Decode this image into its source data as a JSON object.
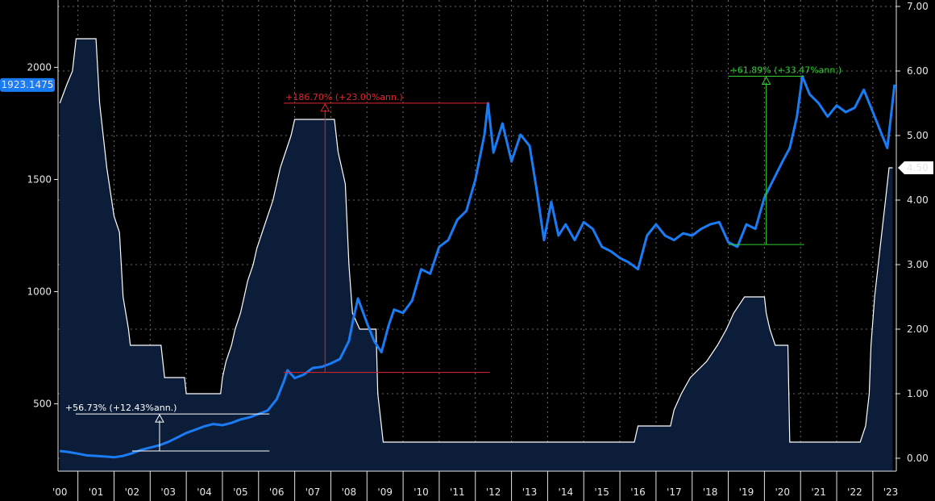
{
  "chart_data": {
    "type": "line",
    "x_labels": [
      "'00",
      "'01",
      "'02",
      "'03",
      "'04",
      "'05",
      "'06",
      "'07",
      "'08",
      "'09",
      "'10",
      "'11",
      "'12",
      "'13",
      "'14",
      "'15",
      "'16",
      "'17",
      "'18",
      "'19",
      "'20",
      "'21",
      "'22",
      "'23"
    ],
    "x_range": [
      1999.95,
      2023.15
    ],
    "left_axis": {
      "range": [
        200,
        2300
      ],
      "ticks": [
        "500",
        "1000",
        "1500",
        "2000"
      ],
      "tick_values": [
        500,
        1000,
        1500,
        2000
      ]
    },
    "right_axis": {
      "range": [
        -0.2,
        7.1
      ],
      "ticks": [
        "0.00",
        "1.00",
        "2.00",
        "3.00",
        "4.00",
        "5.00",
        "6.00",
        "7.00"
      ],
      "tick_values": [
        0,
        1,
        2,
        3,
        4,
        5,
        6,
        7
      ]
    },
    "series": [
      {
        "axis": "left",
        "color": "#1a7cf5",
        "last_value_label": "1923.1475",
        "points": [
          [
            2000.0,
            290
          ],
          [
            2000.25,
            285
          ],
          [
            2000.5,
            278
          ],
          [
            2000.75,
            270
          ],
          [
            2001.0,
            268
          ],
          [
            2001.25,
            265
          ],
          [
            2001.5,
            262
          ],
          [
            2001.75,
            268
          ],
          [
            2002.0,
            280
          ],
          [
            2002.25,
            295
          ],
          [
            2002.5,
            305
          ],
          [
            2002.75,
            315
          ],
          [
            2003.0,
            330
          ],
          [
            2003.25,
            350
          ],
          [
            2003.5,
            370
          ],
          [
            2003.75,
            385
          ],
          [
            2004.0,
            400
          ],
          [
            2004.25,
            410
          ],
          [
            2004.5,
            405
          ],
          [
            2004.75,
            415
          ],
          [
            2005.0,
            430
          ],
          [
            2005.25,
            440
          ],
          [
            2005.5,
            455
          ],
          [
            2005.75,
            470
          ],
          [
            2006.0,
            520
          ],
          [
            2006.2,
            600
          ],
          [
            2006.3,
            650
          ],
          [
            2006.5,
            615
          ],
          [
            2006.75,
            630
          ],
          [
            2007.0,
            660
          ],
          [
            2007.25,
            665
          ],
          [
            2007.5,
            680
          ],
          [
            2007.75,
            700
          ],
          [
            2008.0,
            780
          ],
          [
            2008.1,
            860
          ],
          [
            2008.25,
            970
          ],
          [
            2008.5,
            860
          ],
          [
            2008.7,
            780
          ],
          [
            2008.9,
            730
          ],
          [
            2009.1,
            850
          ],
          [
            2009.25,
            920
          ],
          [
            2009.5,
            905
          ],
          [
            2009.75,
            960
          ],
          [
            2010.0,
            1100
          ],
          [
            2010.25,
            1080
          ],
          [
            2010.5,
            1200
          ],
          [
            2010.75,
            1230
          ],
          [
            2011.0,
            1320
          ],
          [
            2011.25,
            1360
          ],
          [
            2011.5,
            1500
          ],
          [
            2011.75,
            1700
          ],
          [
            2011.85,
            1840
          ],
          [
            2012.0,
            1620
          ],
          [
            2012.25,
            1750
          ],
          [
            2012.5,
            1580
          ],
          [
            2012.75,
            1700
          ],
          [
            2013.0,
            1650
          ],
          [
            2013.2,
            1450
          ],
          [
            2013.4,
            1230
          ],
          [
            2013.6,
            1400
          ],
          [
            2013.8,
            1250
          ],
          [
            2014.0,
            1300
          ],
          [
            2014.25,
            1230
          ],
          [
            2014.5,
            1310
          ],
          [
            2014.75,
            1280
          ],
          [
            2015.0,
            1200
          ],
          [
            2015.25,
            1180
          ],
          [
            2015.5,
            1150
          ],
          [
            2015.75,
            1130
          ],
          [
            2016.0,
            1100
          ],
          [
            2016.25,
            1250
          ],
          [
            2016.5,
            1300
          ],
          [
            2016.75,
            1250
          ],
          [
            2017.0,
            1230
          ],
          [
            2017.25,
            1260
          ],
          [
            2017.5,
            1250
          ],
          [
            2017.75,
            1280
          ],
          [
            2018.0,
            1300
          ],
          [
            2018.25,
            1310
          ],
          [
            2018.5,
            1220
          ],
          [
            2018.75,
            1200
          ],
          [
            2019.0,
            1300
          ],
          [
            2019.25,
            1280
          ],
          [
            2019.5,
            1420
          ],
          [
            2019.75,
            1500
          ],
          [
            2020.0,
            1580
          ],
          [
            2020.2,
            1640
          ],
          [
            2020.4,
            1780
          ],
          [
            2020.55,
            1960
          ],
          [
            2020.75,
            1880
          ],
          [
            2021.0,
            1840
          ],
          [
            2021.25,
            1780
          ],
          [
            2021.5,
            1830
          ],
          [
            2021.75,
            1800
          ],
          [
            2022.0,
            1820
          ],
          [
            2022.25,
            1900
          ],
          [
            2022.5,
            1800
          ],
          [
            2022.75,
            1700
          ],
          [
            2022.9,
            1640
          ],
          [
            2023.0,
            1780
          ],
          [
            2023.1,
            1923
          ]
        ]
      },
      {
        "axis": "right",
        "type": "area",
        "fill": "#0b1d38",
        "stroke": "#ffffff",
        "last_value_label": "4.50",
        "points": [
          [
            2000.0,
            5.5
          ],
          [
            2000.2,
            5.8
          ],
          [
            2000.35,
            6.0
          ],
          [
            2000.45,
            6.5
          ],
          [
            2001.0,
            6.5
          ],
          [
            2001.1,
            5.5
          ],
          [
            2001.3,
            4.5
          ],
          [
            2001.5,
            3.75
          ],
          [
            2001.65,
            3.5
          ],
          [
            2001.75,
            2.5
          ],
          [
            2001.9,
            2.0
          ],
          [
            2001.95,
            1.75
          ],
          [
            2002.8,
            1.75
          ],
          [
            2002.9,
            1.25
          ],
          [
            2003.45,
            1.25
          ],
          [
            2003.5,
            1.0
          ],
          [
            2004.45,
            1.0
          ],
          [
            2004.5,
            1.25
          ],
          [
            2004.6,
            1.5
          ],
          [
            2004.75,
            1.75
          ],
          [
            2004.85,
            2.0
          ],
          [
            2005.0,
            2.25
          ],
          [
            2005.1,
            2.5
          ],
          [
            2005.2,
            2.75
          ],
          [
            2005.35,
            3.0
          ],
          [
            2005.45,
            3.25
          ],
          [
            2005.6,
            3.5
          ],
          [
            2005.75,
            3.75
          ],
          [
            2005.9,
            4.0
          ],
          [
            2006.0,
            4.25
          ],
          [
            2006.1,
            4.5
          ],
          [
            2006.25,
            4.75
          ],
          [
            2006.4,
            5.0
          ],
          [
            2006.5,
            5.25
          ],
          [
            2007.6,
            5.25
          ],
          [
            2007.7,
            4.75
          ],
          [
            2007.8,
            4.5
          ],
          [
            2007.9,
            4.25
          ],
          [
            2008.0,
            3.0
          ],
          [
            2008.1,
            2.25
          ],
          [
            2008.3,
            2.0
          ],
          [
            2008.75,
            2.0
          ],
          [
            2008.8,
            1.0
          ],
          [
            2008.9,
            0.5
          ],
          [
            2008.95,
            0.25
          ],
          [
            2015.9,
            0.25
          ],
          [
            2016.0,
            0.5
          ],
          [
            2016.9,
            0.5
          ],
          [
            2017.0,
            0.75
          ],
          [
            2017.2,
            1.0
          ],
          [
            2017.45,
            1.25
          ],
          [
            2017.9,
            1.5
          ],
          [
            2018.2,
            1.75
          ],
          [
            2018.45,
            2.0
          ],
          [
            2018.65,
            2.25
          ],
          [
            2018.95,
            2.5
          ],
          [
            2019.5,
            2.5
          ],
          [
            2019.55,
            2.25
          ],
          [
            2019.65,
            2.0
          ],
          [
            2019.8,
            1.75
          ],
          [
            2020.15,
            1.75
          ],
          [
            2020.2,
            0.25
          ],
          [
            2022.15,
            0.25
          ],
          [
            2022.3,
            0.5
          ],
          [
            2022.4,
            1.0
          ],
          [
            2022.45,
            1.75
          ],
          [
            2022.55,
            2.5
          ],
          [
            2022.7,
            3.25
          ],
          [
            2022.85,
            4.0
          ],
          [
            2022.95,
            4.5
          ],
          [
            2023.05,
            4.5
          ]
        ]
      }
    ],
    "annotations": [
      {
        "label": "+56.73% (+12.43%ann.)",
        "color": "#ffffff",
        "x_start": 2002.0,
        "x_end": 2005.8,
        "low": 290,
        "high": 455
      },
      {
        "label": "+186.70% (+23.00%ann.)",
        "color": "#e0262e",
        "x_start": 2006.2,
        "x_end": 2011.9,
        "low": 640,
        "high": 1840
      },
      {
        "label": "+61.89% (+33.47%ann.)",
        "color": "#2fd02f",
        "x_start": 2018.5,
        "x_end": 2020.6,
        "low": 1210,
        "high": 1960
      }
    ],
    "grid": true
  }
}
